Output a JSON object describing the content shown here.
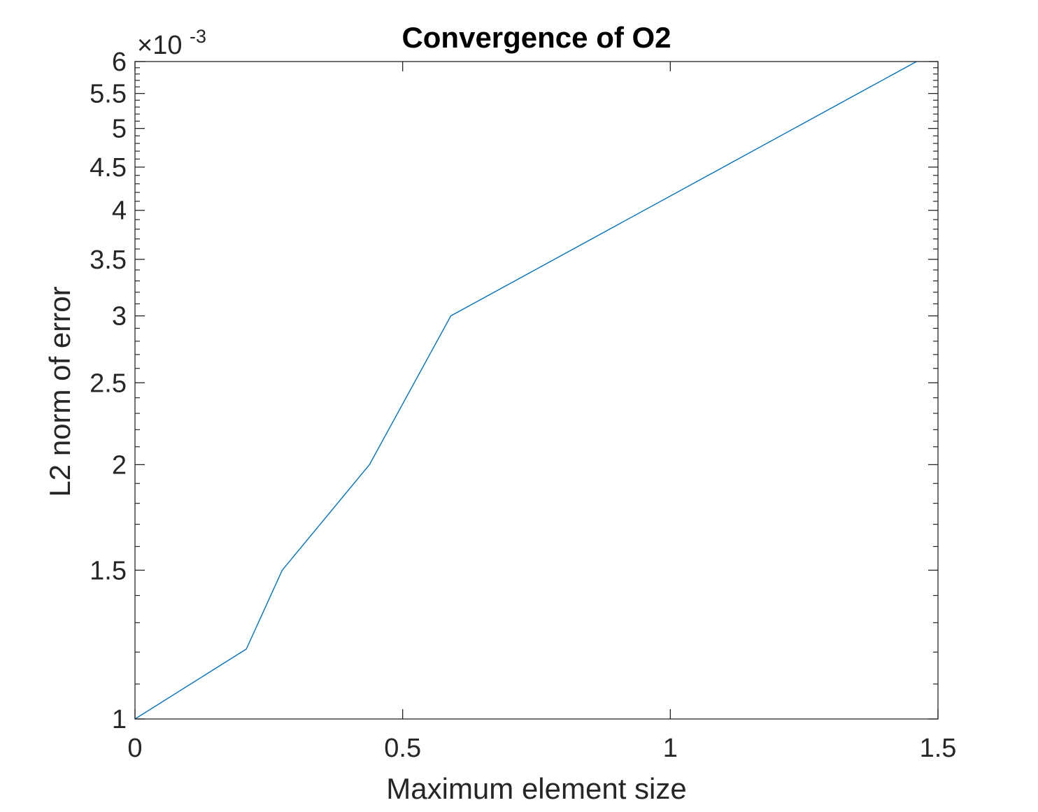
{
  "chart_data": {
    "type": "line",
    "title": "Convergence of O2",
    "xlabel": "Maximum element size",
    "ylabel": "L2 norm of error",
    "y_scale": "log",
    "y_exponent": {
      "prefix": "×10",
      "power": "-3"
    },
    "xlim": [
      0,
      1.5
    ],
    "ylim": [
      0.001,
      0.006
    ],
    "x_ticks": [
      0,
      0.5,
      1,
      1.5
    ],
    "x_tick_labels": [
      "0",
      "0.5",
      "1",
      "1.5"
    ],
    "y_ticks": [
      0.001,
      0.0015,
      0.002,
      0.0025,
      0.003,
      0.0035,
      0.004,
      0.0045,
      0.005,
      0.0055,
      0.006
    ],
    "y_tick_labels": [
      "1",
      "1.5",
      "2",
      "2.5",
      "3",
      "3.5",
      "4",
      "4.5",
      "5",
      "5.5",
      "6"
    ],
    "y_minor_ticks": [
      0.0011,
      0.0012,
      0.0013,
      0.0014,
      0.0016,
      0.0017,
      0.0018,
      0.0019,
      0.0021,
      0.0022,
      0.0023,
      0.0024,
      0.0026,
      0.0027,
      0.0028,
      0.0029,
      0.0031,
      0.0032,
      0.0033,
      0.0034,
      0.0036,
      0.0037,
      0.0038,
      0.0039,
      0.0041,
      0.0042,
      0.0043,
      0.0044,
      0.0046,
      0.0047,
      0.0048,
      0.0049,
      0.0051,
      0.0052,
      0.0053,
      0.0054,
      0.0056,
      0.0057,
      0.0058,
      0.0059
    ],
    "grid": false,
    "box": true,
    "series": [
      {
        "color": "#0072BD",
        "x": [
          0,
          0.208,
          0.275,
          0.438,
          0.59,
          1.46
        ],
        "y": [
          0.001,
          0.00121,
          0.0015,
          0.002,
          0.003,
          0.006
        ]
      }
    ]
  }
}
